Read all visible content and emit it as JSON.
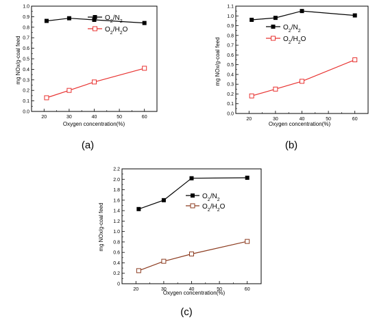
{
  "chart_data": [
    {
      "type": "line",
      "caption": "(a)",
      "xlabel": "Oxygen concentration(%)",
      "ylabel": "mg NOx/g-coal feed",
      "xlim": [
        15,
        65
      ],
      "ylim": [
        0,
        1.0
      ],
      "x_ticks": [
        "20",
        "30",
        "40",
        "50",
        "60"
      ],
      "y_ticks": [
        "0.0",
        "0.1",
        "0.2",
        "0.3",
        "0.4",
        "0.5",
        "0.6",
        "0.7",
        "0.8",
        "0.9",
        "1.0"
      ],
      "legend_position": "upper-right",
      "series": [
        {
          "name": "O2/N2",
          "color": "#000000",
          "marker": "filled-square",
          "x": [
            21,
            30,
            40,
            60
          ],
          "y": [
            0.86,
            0.885,
            0.87,
            0.84
          ]
        },
        {
          "name": "O2/H2O",
          "color": "#e8312f",
          "marker": "open-square",
          "x": [
            21,
            30,
            40,
            60
          ],
          "y": [
            0.13,
            0.2,
            0.28,
            0.41
          ]
        }
      ]
    },
    {
      "type": "line",
      "caption": "(b)",
      "xlabel": "Oxygen concentration(%)",
      "ylabel": "mg NOx/g-coal feed",
      "xlim": [
        15,
        65
      ],
      "ylim": [
        0,
        1.1
      ],
      "x_ticks": [
        "20",
        "30",
        "40",
        "50",
        "60"
      ],
      "y_ticks": [
        "0.0",
        "0.1",
        "0.2",
        "0.3",
        "0.4",
        "0.5",
        "0.6",
        "0.7",
        "0.8",
        "0.9",
        "1.0",
        "1.1"
      ],
      "legend_position": "upper-right",
      "series": [
        {
          "name": "O2/N2",
          "color": "#000000",
          "marker": "filled-square",
          "x": [
            21,
            30,
            40,
            60
          ],
          "y": [
            0.96,
            0.98,
            1.05,
            1.005
          ]
        },
        {
          "name": "O2/H2O",
          "color": "#e8312f",
          "marker": "open-square",
          "x": [
            21,
            30,
            40,
            60
          ],
          "y": [
            0.18,
            0.25,
            0.33,
            0.55
          ]
        }
      ]
    },
    {
      "type": "line",
      "caption": "(c)",
      "xlabel": "Oxygen concentration(%)",
      "ylabel": "mg NOx/g-coal feed",
      "xlim": [
        15,
        65
      ],
      "ylim": [
        0,
        2.2
      ],
      "x_ticks": [
        "20",
        "30",
        "40",
        "50",
        "60"
      ],
      "y_ticks": [
        "0",
        "0.2",
        "0.4",
        "0.6",
        "0.8",
        "1.0",
        "1.2",
        "1.4",
        "1.6",
        "1.8",
        "2.0",
        "2.2"
      ],
      "legend_position": "upper-left",
      "series": [
        {
          "name": "O2/N2",
          "color": "#000000",
          "marker": "filled-square",
          "x": [
            21,
            30,
            40,
            60
          ],
          "y": [
            1.43,
            1.6,
            2.02,
            2.03
          ]
        },
        {
          "name": "O2/H2O",
          "color": "#8b3a1e",
          "marker": "open-square",
          "x": [
            21,
            30,
            40,
            60
          ],
          "y": [
            0.25,
            0.43,
            0.57,
            0.81
          ]
        }
      ]
    }
  ]
}
